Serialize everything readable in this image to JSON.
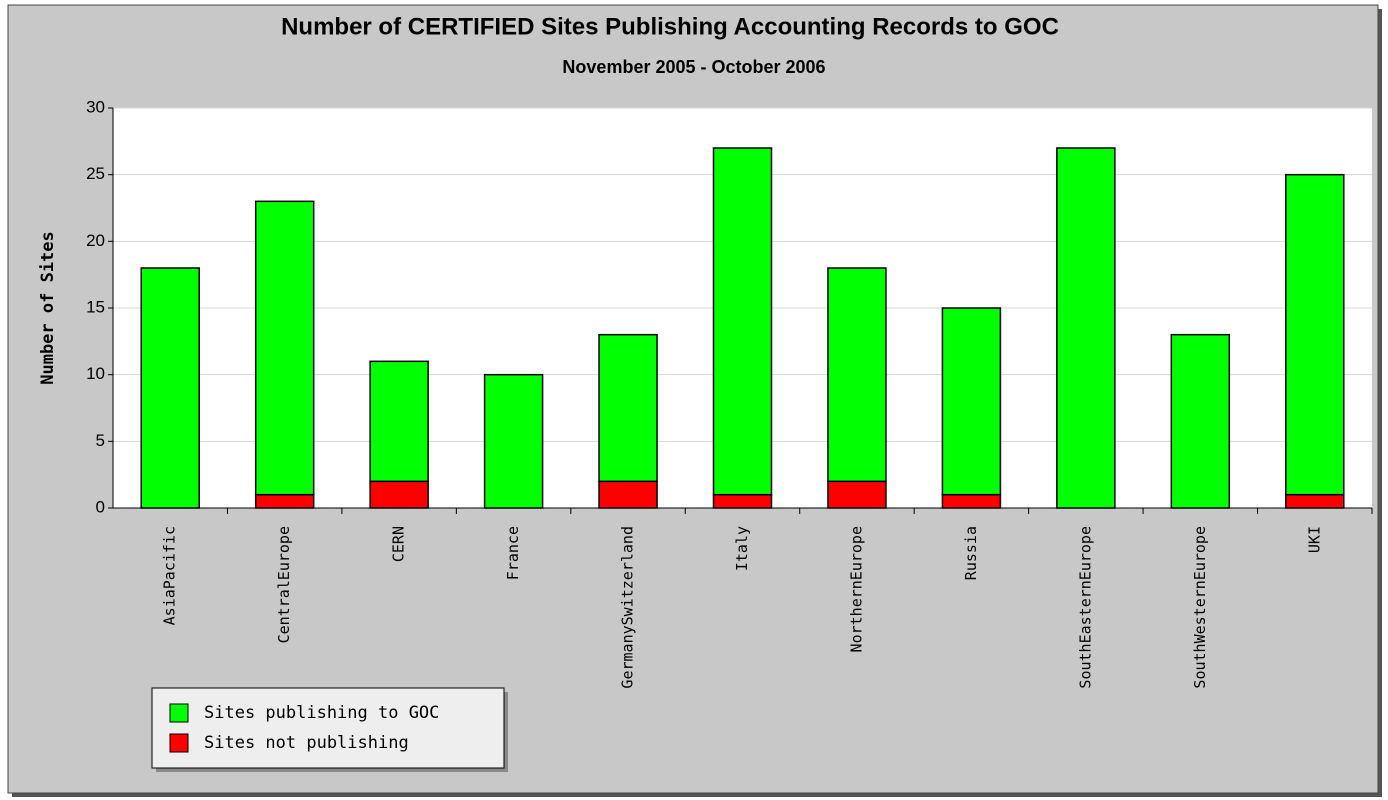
{
  "chart_data": {
    "type": "stacked_bar",
    "title": "Number of CERTIFIED Sites Publishing Accounting Records to GOC",
    "subtitle": "November 2005 - October 2006",
    "y_label": "Number of Sites",
    "categories": [
      "AsiaPacific",
      "CentralEurope",
      "CERN",
      "France",
      "GermanySwitzerland",
      "Italy",
      "NorthernEurope",
      "Russia",
      "SouthEasternEurope",
      "SouthWesternEurope",
      "UKI"
    ],
    "series": [
      {
        "name": "Sites publishing to GOC",
        "color": "#00ff00",
        "values": [
          18,
          22,
          9,
          10,
          11,
          26,
          16,
          14,
          27,
          13,
          24
        ]
      },
      {
        "name": "Sites not publishing",
        "color": "#ff0000",
        "values": [
          0,
          1,
          2,
          0,
          2,
          1,
          2,
          1,
          0,
          0,
          1
        ]
      }
    ],
    "ylim": [
      0,
      30
    ],
    "yticks": [
      0,
      5,
      10,
      15,
      20,
      25,
      30
    ],
    "grid": true,
    "legend": "bottom-left"
  }
}
